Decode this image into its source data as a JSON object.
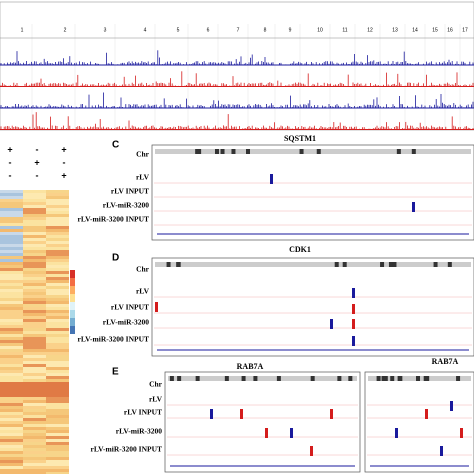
{
  "top_panel": {
    "chromosomes": [
      "1",
      "2",
      "3",
      "4",
      "5",
      "6",
      "7",
      "8",
      "9",
      "10",
      "11",
      "12",
      "13",
      "14",
      "15",
      "16",
      "17"
    ]
  },
  "heatmap": {
    "signs": [
      [
        "+",
        "-",
        "+"
      ],
      [
        "-",
        "+",
        "-"
      ],
      [
        "-",
        "-",
        "+"
      ]
    ]
  },
  "panels": [
    {
      "letter": "C",
      "title": "SQSTM1",
      "tracks": [
        "Chr",
        "rLV",
        "rLV INPUT",
        "rLV-miR-3200",
        "rLV-miR-3200 INPUT"
      ]
    },
    {
      "letter": "D",
      "title": "CDK1",
      "tracks": [
        "Chr",
        "rLV",
        "rLV INPUT",
        "rLV-miR-3200",
        "rLV-miR-3200 INPUT"
      ]
    },
    {
      "letter": "E",
      "title": "RAB7A",
      "second_title": "RAB7A",
      "tracks": [
        "Chr",
        "rLV",
        "rLV INPUT",
        "rLV-miR-3200",
        "rLV-miR-3200 INPUT"
      ]
    }
  ]
}
